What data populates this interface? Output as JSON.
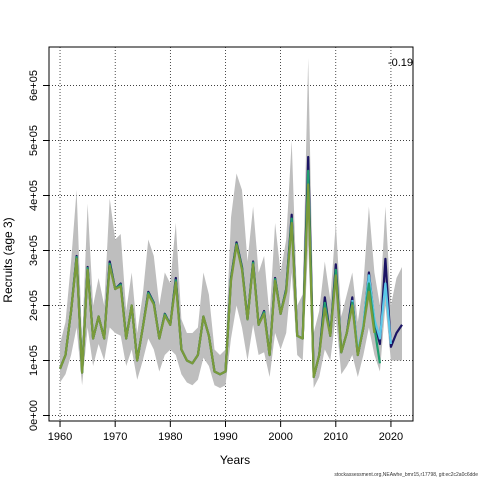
{
  "chart_data": {
    "type": "line",
    "title": "",
    "xlabel": "Years",
    "ylabel": "Recruits (age 3)",
    "xlim": [
      1958,
      2024
    ],
    "ylim": [
      -10000,
      670000
    ],
    "xticks": [
      1960,
      1970,
      1980,
      1990,
      2000,
      2010,
      2020
    ],
    "yticks": [
      0,
      100000,
      200000,
      300000,
      400000,
      500000,
      600000
    ],
    "ytick_labels": [
      "0e+00",
      "1e+05",
      "2e+05",
      "3e+05",
      "4e+05",
      "5e+05",
      "6e+05"
    ],
    "grid": true,
    "annotation": "-0.19",
    "footer": "stockassessment.org,NEAwhe_bmr15,r17798, git:ec2c2a0c6dde",
    "ci_band": {
      "color": "#bebebe",
      "x": [
        1960,
        1961,
        1962,
        1963,
        1964,
        1965,
        1966,
        1967,
        1968,
        1969,
        1970,
        1971,
        1972,
        1973,
        1974,
        1975,
        1976,
        1977,
        1978,
        1979,
        1980,
        1981,
        1982,
        1983,
        1984,
        1985,
        1986,
        1987,
        1988,
        1989,
        1990,
        1991,
        1992,
        1993,
        1994,
        1995,
        1996,
        1997,
        1998,
        1999,
        2000,
        2001,
        2002,
        2003,
        2004,
        2005,
        2006,
        2007,
        2008,
        2009,
        2010,
        2011,
        2012,
        2013,
        2014,
        2015,
        2016,
        2017,
        2018,
        2019,
        2020,
        2021,
        2022
      ],
      "lower": [
        60000,
        75000,
        110000,
        160000,
        55000,
        160000,
        90000,
        130000,
        100000,
        160000,
        150000,
        145000,
        90000,
        120000,
        65000,
        100000,
        140000,
        120000,
        80000,
        110000,
        120000,
        110000,
        75000,
        60000,
        55000,
        65000,
        105000,
        90000,
        55000,
        50000,
        55000,
        140000,
        200000,
        160000,
        100000,
        165000,
        110000,
        115000,
        70000,
        150000,
        120000,
        150000,
        260000,
        110000,
        100000,
        310000,
        50000,
        70000,
        120000,
        100000,
        180000,
        75000,
        90000,
        110000,
        70000,
        110000,
        160000,
        110000,
        80000,
        200000,
        100000,
        100000,
        100000
      ],
      "upper": [
        130000,
        170000,
        280000,
        410000,
        135000,
        385000,
        200000,
        250000,
        200000,
        395000,
        320000,
        330000,
        190000,
        260000,
        150000,
        220000,
        320000,
        290000,
        200000,
        260000,
        240000,
        350000,
        175000,
        150000,
        150000,
        160000,
        260000,
        220000,
        120000,
        110000,
        120000,
        360000,
        440000,
        410000,
        280000,
        380000,
        260000,
        290000,
        180000,
        350000,
        260000,
        320000,
        500000,
        200000,
        220000,
        650000,
        150000,
        190000,
        280000,
        210000,
        350000,
        180000,
        220000,
        260000,
        170000,
        240000,
        380000,
        260000,
        200000,
        380000,
        200000,
        250000,
        270000
      ]
    },
    "series": [
      {
        "color": "#1b1464",
        "x": [
          1960,
          1961,
          1962,
          1963,
          1964,
          1965,
          1966,
          1967,
          1968,
          1969,
          1970,
          1971,
          1972,
          1973,
          1974,
          1975,
          1976,
          1977,
          1978,
          1979,
          1980,
          1981,
          1982,
          1983,
          1984,
          1985,
          1986,
          1987,
          1988,
          1989,
          1990,
          1991,
          1992,
          1993,
          1994,
          1995,
          1996,
          1997,
          1998,
          1999,
          2000,
          2001,
          2002,
          2003,
          2004,
          2005,
          2006,
          2007,
          2008,
          2009,
          2010,
          2011,
          2012,
          2013,
          2014,
          2015,
          2016,
          2017,
          2018,
          2019,
          2020,
          2021,
          2022
        ],
        "values": [
          85000,
          110000,
          190000,
          290000,
          78000,
          270000,
          140000,
          180000,
          140000,
          280000,
          230000,
          240000,
          140000,
          200000,
          100000,
          160000,
          225000,
          205000,
          140000,
          185000,
          165000,
          250000,
          120000,
          100000,
          95000,
          110000,
          180000,
          145000,
          80000,
          75000,
          80000,
          250000,
          315000,
          270000,
          175000,
          280000,
          165000,
          190000,
          110000,
          250000,
          185000,
          230000,
          365000,
          145000,
          140000,
          470000,
          70000,
          110000,
          215000,
          145000,
          275000,
          115000,
          150000,
          215000,
          110000,
          160000,
          260000,
          170000,
          130000,
          285000,
          125000,
          150000,
          165000
        ]
      },
      {
        "color": "#5bc8e8",
        "x": [
          2013,
          2014,
          2015,
          2016,
          2017,
          2018,
          2019,
          2020
        ],
        "values": [
          210000,
          115000,
          165000,
          255000,
          175000,
          140000,
          240000,
          130000
        ]
      },
      {
        "color": "#1f9e6e",
        "x": [
          1960,
          1961,
          1962,
          1963,
          1964,
          1965,
          1966,
          1967,
          1968,
          1969,
          1970,
          1971,
          1972,
          1973,
          1974,
          1975,
          1976,
          1977,
          1978,
          1979,
          1980,
          1981,
          1982,
          1983,
          1984,
          1985,
          1986,
          1987,
          1988,
          1989,
          1990,
          1991,
          1992,
          1993,
          1994,
          1995,
          1996,
          1997,
          1998,
          1999,
          2000,
          2001,
          2002,
          2003,
          2004,
          2005,
          2006,
          2007,
          2008,
          2009,
          2010,
          2011,
          2012,
          2013,
          2014,
          2015,
          2016,
          2017,
          2018
        ],
        "values": [
          85000,
          110000,
          190000,
          288000,
          78000,
          268000,
          140000,
          180000,
          140000,
          276000,
          230000,
          238000,
          140000,
          200000,
          100000,
          160000,
          223000,
          204000,
          140000,
          184000,
          165000,
          246000,
          120000,
          100000,
          95000,
          110000,
          180000,
          145000,
          80000,
          75000,
          80000,
          248000,
          312000,
          268000,
          175000,
          278000,
          165000,
          188000,
          110000,
          248000,
          185000,
          228000,
          358000,
          145000,
          140000,
          445000,
          70000,
          110000,
          205000,
          145000,
          265000,
          115000,
          150000,
          205000,
          110000,
          160000,
          240000,
          160000,
          95000
        ]
      },
      {
        "color": "#7a9a3a",
        "x": [
          1960,
          1961,
          1962,
          1963,
          1964,
          1965,
          1966,
          1967,
          1968,
          1969,
          1970,
          1971,
          1972,
          1973,
          1974,
          1975,
          1976,
          1977,
          1978,
          1979,
          1980,
          1981,
          1982,
          1983,
          1984,
          1985,
          1986,
          1987,
          1988,
          1989,
          1990,
          1991,
          1992,
          1993,
          1994,
          1995,
          1996,
          1997,
          1998,
          1999,
          2000,
          2001,
          2002,
          2003,
          2004,
          2005,
          2006,
          2007,
          2008,
          2009,
          2010,
          2011,
          2012,
          2013,
          2014,
          2015,
          2016,
          2017
        ],
        "values": [
          85000,
          110000,
          190000,
          285000,
          78000,
          265000,
          140000,
          180000,
          140000,
          272000,
          230000,
          235000,
          140000,
          200000,
          100000,
          160000,
          220000,
          202000,
          140000,
          182000,
          165000,
          242000,
          120000,
          100000,
          95000,
          110000,
          180000,
          145000,
          80000,
          75000,
          80000,
          245000,
          310000,
          265000,
          175000,
          275000,
          165000,
          185000,
          110000,
          245000,
          185000,
          225000,
          350000,
          145000,
          140000,
          420000,
          70000,
          110000,
          195000,
          145000,
          255000,
          115000,
          150000,
          200000,
          110000,
          160000,
          225000,
          150000
        ]
      }
    ]
  }
}
